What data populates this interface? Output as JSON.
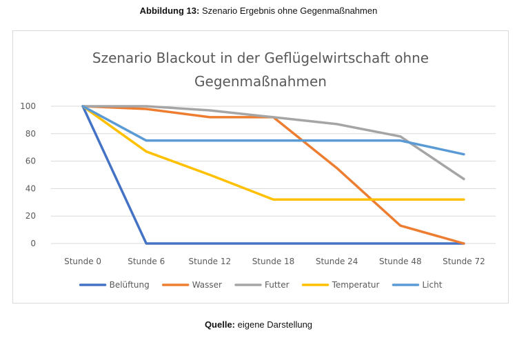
{
  "caption": {
    "label": "Abbildung 13:",
    "text": " Szenario Ergebnis ohne Gegenmaßnahmen"
  },
  "source": {
    "label": "Quelle:",
    "text": " eigene Darstellung"
  },
  "chart_data": {
    "type": "line",
    "title_lines": [
      "Szenario Blackout in der Geflügelwirtschaft ohne",
      "Gegenmaßnahmen"
    ],
    "categories": [
      "Stunde 0",
      "Stunde 6",
      "Stunde 12",
      "Stunde 18",
      "Stunde 24",
      "Stunde 48",
      "Stunde 72"
    ],
    "ylim": [
      0,
      100
    ],
    "yticks": [
      0,
      20,
      40,
      60,
      80,
      100
    ],
    "grid": true,
    "legend_position": "bottom",
    "series": [
      {
        "name": "Belüftung",
        "color": "#4472C4",
        "values": [
          100,
          0,
          0,
          0,
          0,
          0,
          0
        ]
      },
      {
        "name": "Wasser",
        "color": "#ED7D31",
        "values": [
          100,
          98,
          92,
          92,
          55,
          13,
          0
        ]
      },
      {
        "name": "Futter",
        "color": "#A5A5A5",
        "values": [
          100,
          100,
          97,
          92,
          87,
          78,
          47
        ]
      },
      {
        "name": "Temperatur",
        "color": "#FFC000",
        "values": [
          100,
          67,
          50,
          32,
          32,
          32,
          32
        ]
      },
      {
        "name": "Licht",
        "color": "#5B9BD5",
        "values": [
          100,
          75,
          75,
          75,
          75,
          75,
          65
        ]
      }
    ]
  }
}
